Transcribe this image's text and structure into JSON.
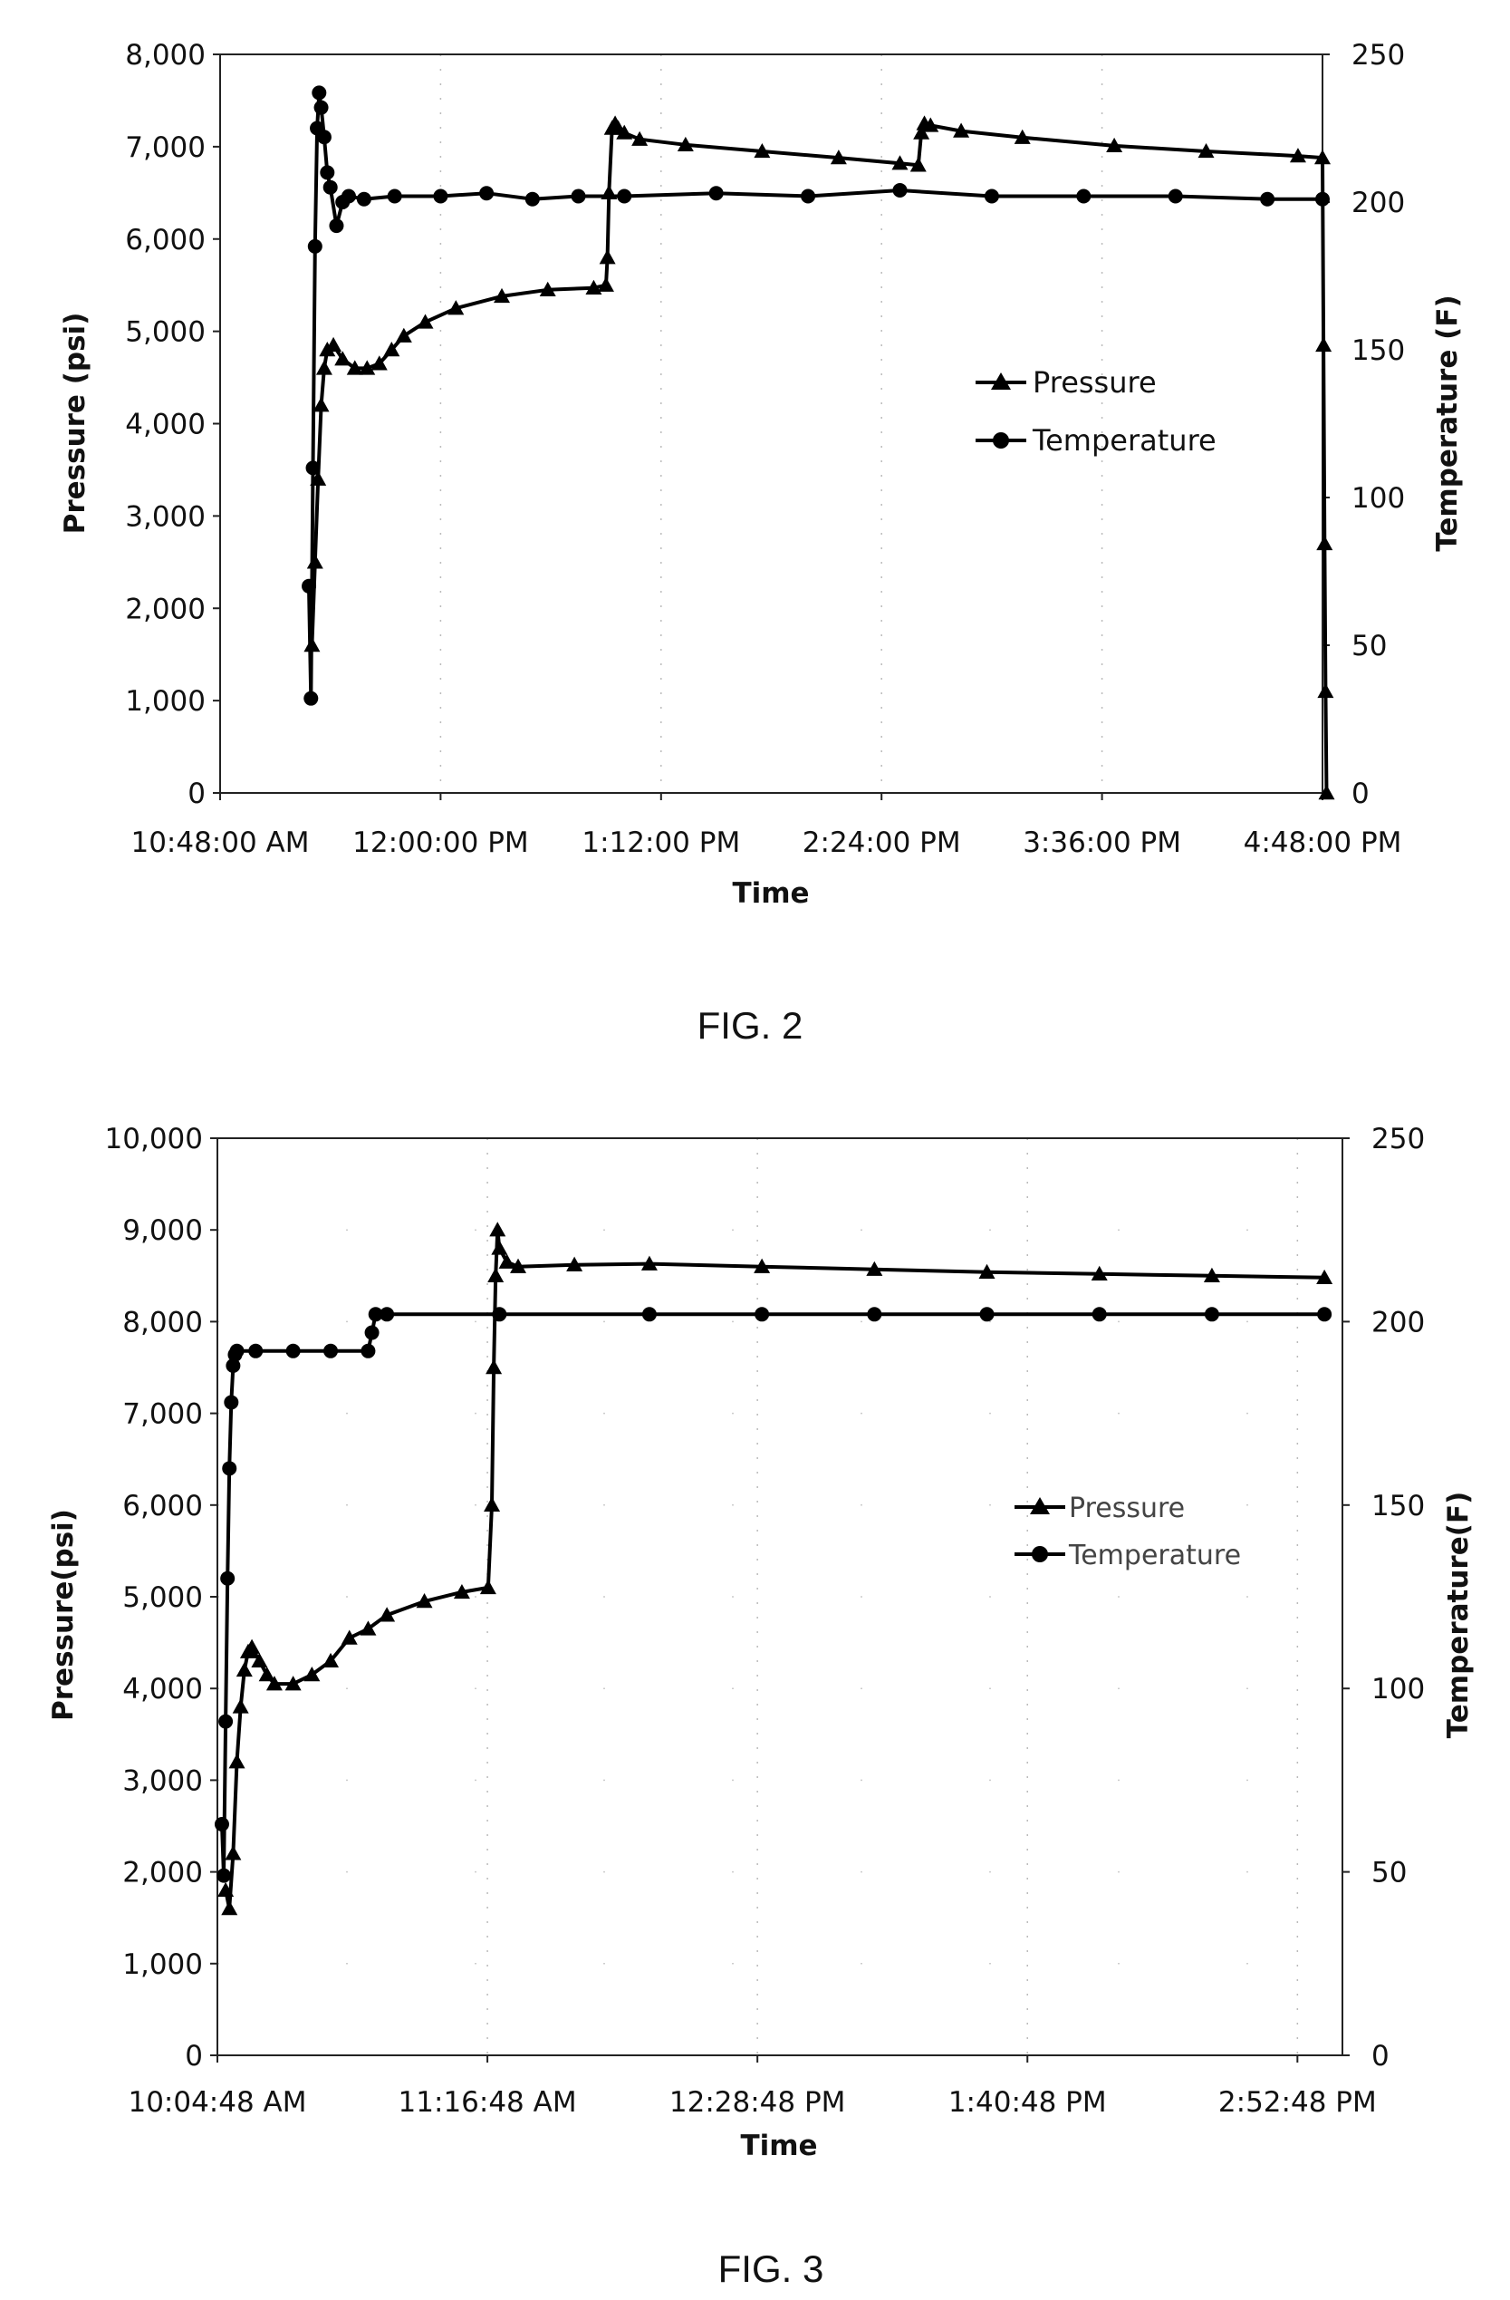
{
  "chart_data": [
    {
      "type": "line",
      "figure": "FIG. 2",
      "title": "",
      "xlabel": "Time",
      "ylabel": "Pressure (psi)",
      "y2label": "Temperature (F)",
      "x_start": "10:48:00",
      "x_end": "16:48:00",
      "xticks": [
        "10:48:00 AM",
        "12:00:00 PM",
        "1:12:00 PM",
        "2:24:00 PM",
        "3:36:00 PM",
        "4:48:00 PM"
      ],
      "ylim": [
        0,
        8000
      ],
      "yticks": [
        "0",
        "1,000",
        "2,000",
        "3,000",
        "4,000",
        "5,000",
        "6,000",
        "7,000",
        "8,000"
      ],
      "y2lim": [
        0,
        250
      ],
      "y2ticks": [
        "0",
        "50",
        "100",
        "150",
        "200",
        "250"
      ],
      "grid": "dotted vertical",
      "legend": "center-right",
      "series": [
        {
          "name": "Pressure",
          "axis": "left",
          "marker": "triangle",
          "x": [
            "11:18:00",
            "11:19:00",
            "11:20:00",
            "11:21:00",
            "11:22:00",
            "11:23:00",
            "11:25:00",
            "11:28:00",
            "11:32:00",
            "11:36:00",
            "11:40:00",
            "11:44:00",
            "11:48:00",
            "11:55:00",
            "12:05:00",
            "12:20:00",
            "12:35:00",
            "12:50:00",
            "12:54:00",
            "12:54:30",
            "12:55:00",
            "12:56:00",
            "12:57:00",
            "12:58:00",
            "13:00:00",
            "13:05:00",
            "13:20:00",
            "13:45:00",
            "14:10:00",
            "14:30:00",
            "14:36:00",
            "14:37:00",
            "14:38:00",
            "14:40:00",
            "14:50:00",
            "15:10:00",
            "15:40:00",
            "16:10:00",
            "16:40:00",
            "16:48:00",
            "16:48:20",
            "16:48:40",
            "16:49:00",
            "16:49:20"
          ],
          "y": [
            1600,
            2500,
            3400,
            4200,
            4600,
            4800,
            4850,
            4700,
            4600,
            4600,
            4650,
            4800,
            4950,
            5100,
            5250,
            5380,
            5450,
            5470,
            5500,
            5800,
            6500,
            7200,
            7250,
            7200,
            7150,
            7080,
            7020,
            6950,
            6880,
            6820,
            6800,
            7150,
            7250,
            7230,
            7170,
            7100,
            7010,
            6950,
            6900,
            6880,
            4850,
            2700,
            1100,
            0
          ]
        },
        {
          "name": "Temperature",
          "axis": "right",
          "marker": "circle",
          "x": [
            "11:17:00",
            "11:17:40",
            "11:18:20",
            "11:19:00",
            "11:19:40",
            "11:20:20",
            "11:21:00",
            "11:22:00",
            "11:23:00",
            "11:24:00",
            "11:26:00",
            "11:28:00",
            "11:30:00",
            "11:35:00",
            "11:45:00",
            "12:00:00",
            "12:15:00",
            "12:30:00",
            "12:45:00",
            "13:00:00",
            "13:30:00",
            "14:00:00",
            "14:30:00",
            "15:00:00",
            "15:30:00",
            "16:00:00",
            "16:30:00",
            "16:48:00"
          ],
          "y": [
            70,
            32,
            110,
            185,
            225,
            237,
            232,
            222,
            210,
            205,
            192,
            200,
            202,
            201,
            202,
            202,
            203,
            201,
            202,
            202,
            203,
            202,
            204,
            202,
            202,
            202,
            201,
            201
          ]
        }
      ]
    },
    {
      "type": "line",
      "figure": "FIG. 3",
      "title": "",
      "xlabel": "Time",
      "ylabel": "Pressure(psi)",
      "y2label": "Temperature(F)",
      "x_start": "10:04:48",
      "x_end": "15:04:48",
      "xticks": [
        "10:04:48 AM",
        "11:16:48 AM",
        "12:28:48 PM",
        "1:40:48 PM",
        "2:52:48 PM"
      ],
      "ylim": [
        0,
        10000
      ],
      "yticks": [
        "0",
        "1,000",
        "2,000",
        "3,000",
        "4,000",
        "5,000",
        "6,000",
        "7,000",
        "8,000",
        "9,000",
        "10,000"
      ],
      "y2lim": [
        0,
        250
      ],
      "y2ticks": [
        "0",
        "50",
        "100",
        "150",
        "200",
        "250"
      ],
      "grid": "dotted",
      "legend": "center-right",
      "series": [
        {
          "name": "Pressure",
          "axis": "left",
          "marker": "triangle",
          "x": [
            "10:07:00",
            "10:08:00",
            "10:09:00",
            "10:10:00",
            "10:11:00",
            "10:12:00",
            "10:13:00",
            "10:14:00",
            "10:16:00",
            "10:18:00",
            "10:20:00",
            "10:25:00",
            "10:30:00",
            "10:35:00",
            "10:40:00",
            "10:45:00",
            "10:50:00",
            "11:00:00",
            "11:10:00",
            "11:17:00",
            "11:18:00",
            "11:18:30",
            "11:19:00",
            "11:19:30",
            "11:20:00",
            "11:22:00",
            "11:25:00",
            "11:40:00",
            "12:00:00",
            "12:30:00",
            "13:00:00",
            "13:30:00",
            "14:00:00",
            "14:30:00",
            "15:00:00"
          ],
          "y": [
            1800,
            1600,
            2200,
            3200,
            3800,
            4200,
            4400,
            4450,
            4300,
            4150,
            4050,
            4050,
            4150,
            4300,
            4550,
            4650,
            4800,
            4950,
            5050,
            5100,
            6000,
            7500,
            8500,
            9000,
            8800,
            8650,
            8600,
            8620,
            8630,
            8600,
            8570,
            8540,
            8520,
            8500,
            8480
          ]
        },
        {
          "name": "Temperature",
          "axis": "right",
          "marker": "circle",
          "x": [
            "10:06:00",
            "10:06:30",
            "10:07:00",
            "10:07:30",
            "10:08:00",
            "10:08:30",
            "10:09:00",
            "10:09:30",
            "10:10:00",
            "10:15:00",
            "10:25:00",
            "10:35:00",
            "10:45:00",
            "10:46:00",
            "10:47:00",
            "10:50:00",
            "11:20:00",
            "12:00:00",
            "12:30:00",
            "13:00:00",
            "13:30:00",
            "14:00:00",
            "14:30:00",
            "15:00:00"
          ],
          "y": [
            63,
            49,
            91,
            130,
            160,
            178,
            188,
            191,
            192,
            192,
            192,
            192,
            192,
            197,
            202,
            202,
            202,
            202,
            202,
            202,
            202,
            202,
            202,
            202
          ]
        }
      ]
    }
  ]
}
